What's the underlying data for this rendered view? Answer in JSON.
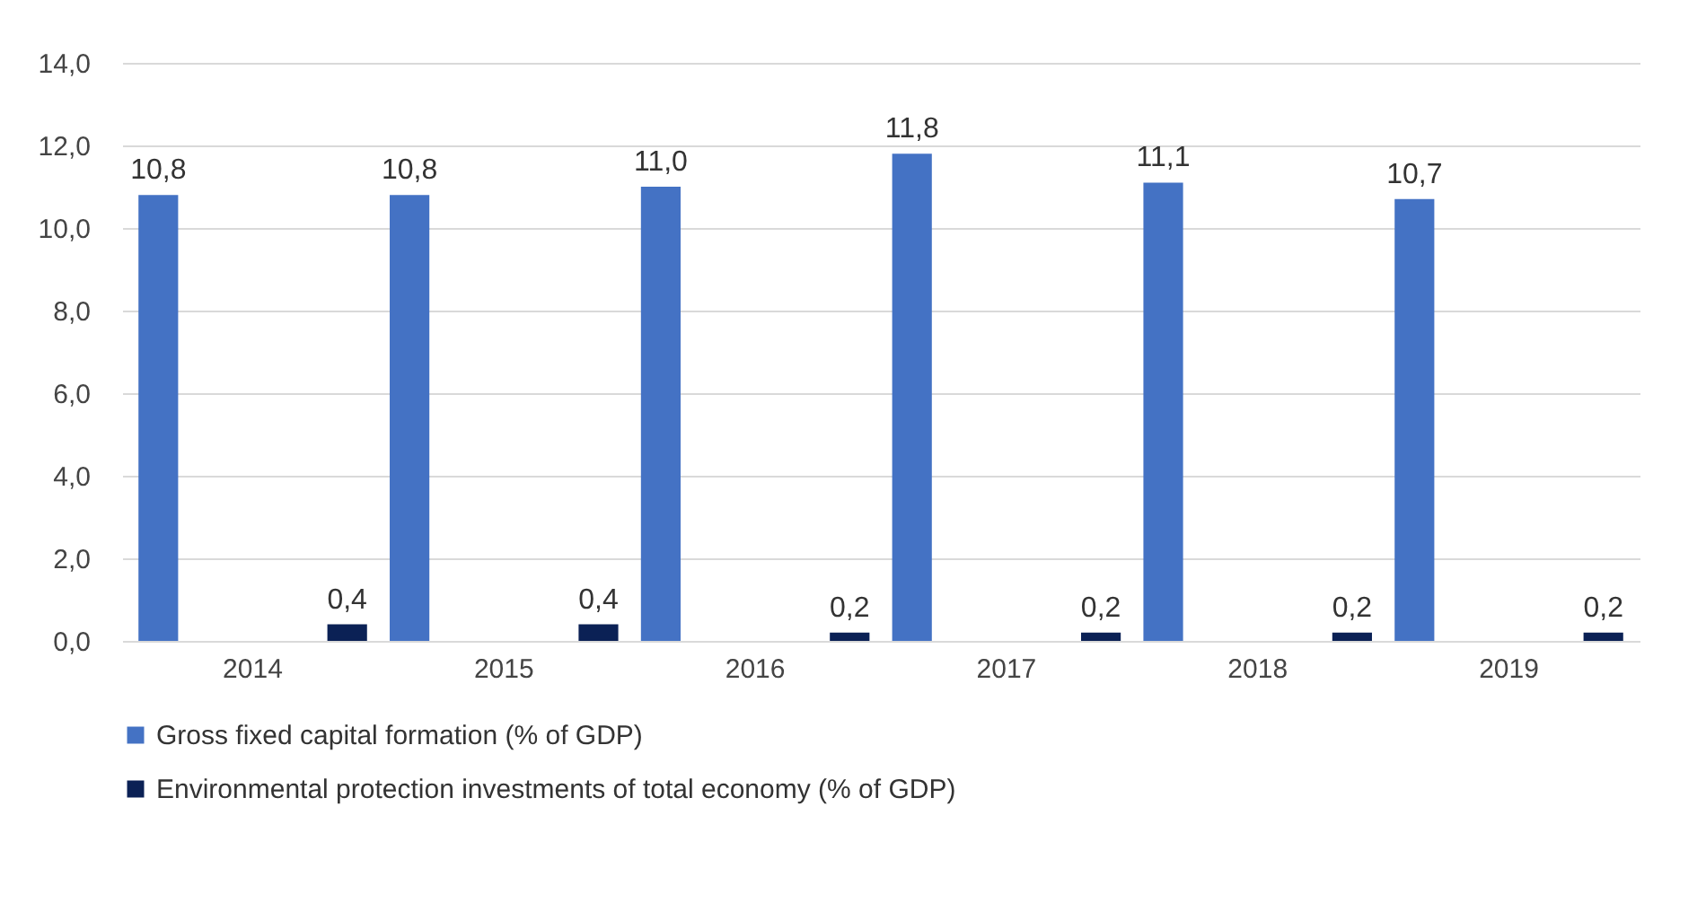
{
  "chart_data": {
    "type": "bar",
    "categories": [
      "2014",
      "2015",
      "2016",
      "2017",
      "2018",
      "2019"
    ],
    "series": [
      {
        "name": "Gross fixed capital formation (% of GDP)",
        "color": "#4472c4",
        "values": [
          10.8,
          10.8,
          11.0,
          11.8,
          11.1,
          10.7
        ],
        "value_labels": [
          "10,8",
          "10,8",
          "11,0",
          "11,8",
          "11,1",
          "10,7"
        ]
      },
      {
        "name": "Environmental protection investments of total economy (% of GDP)",
        "color": "#0b2155",
        "values": [
          0.4,
          0.4,
          0.2,
          0.2,
          0.2,
          0.2
        ],
        "value_labels": [
          "0,4",
          "0,4",
          "0,2",
          "0,2",
          "0,2",
          "0,2"
        ]
      }
    ],
    "ylim": [
      0,
      14
    ],
    "yticks": [
      {
        "value": 0,
        "label": "0,0"
      },
      {
        "value": 2,
        "label": "2,0"
      },
      {
        "value": 4,
        "label": "4,0"
      },
      {
        "value": 6,
        "label": "6,0"
      },
      {
        "value": 8,
        "label": "8,0"
      },
      {
        "value": 10,
        "label": "10,0"
      },
      {
        "value": 12,
        "label": "12,0"
      },
      {
        "value": 14,
        "label": "14,0"
      }
    ],
    "grid": "y",
    "legend": "bottom"
  }
}
